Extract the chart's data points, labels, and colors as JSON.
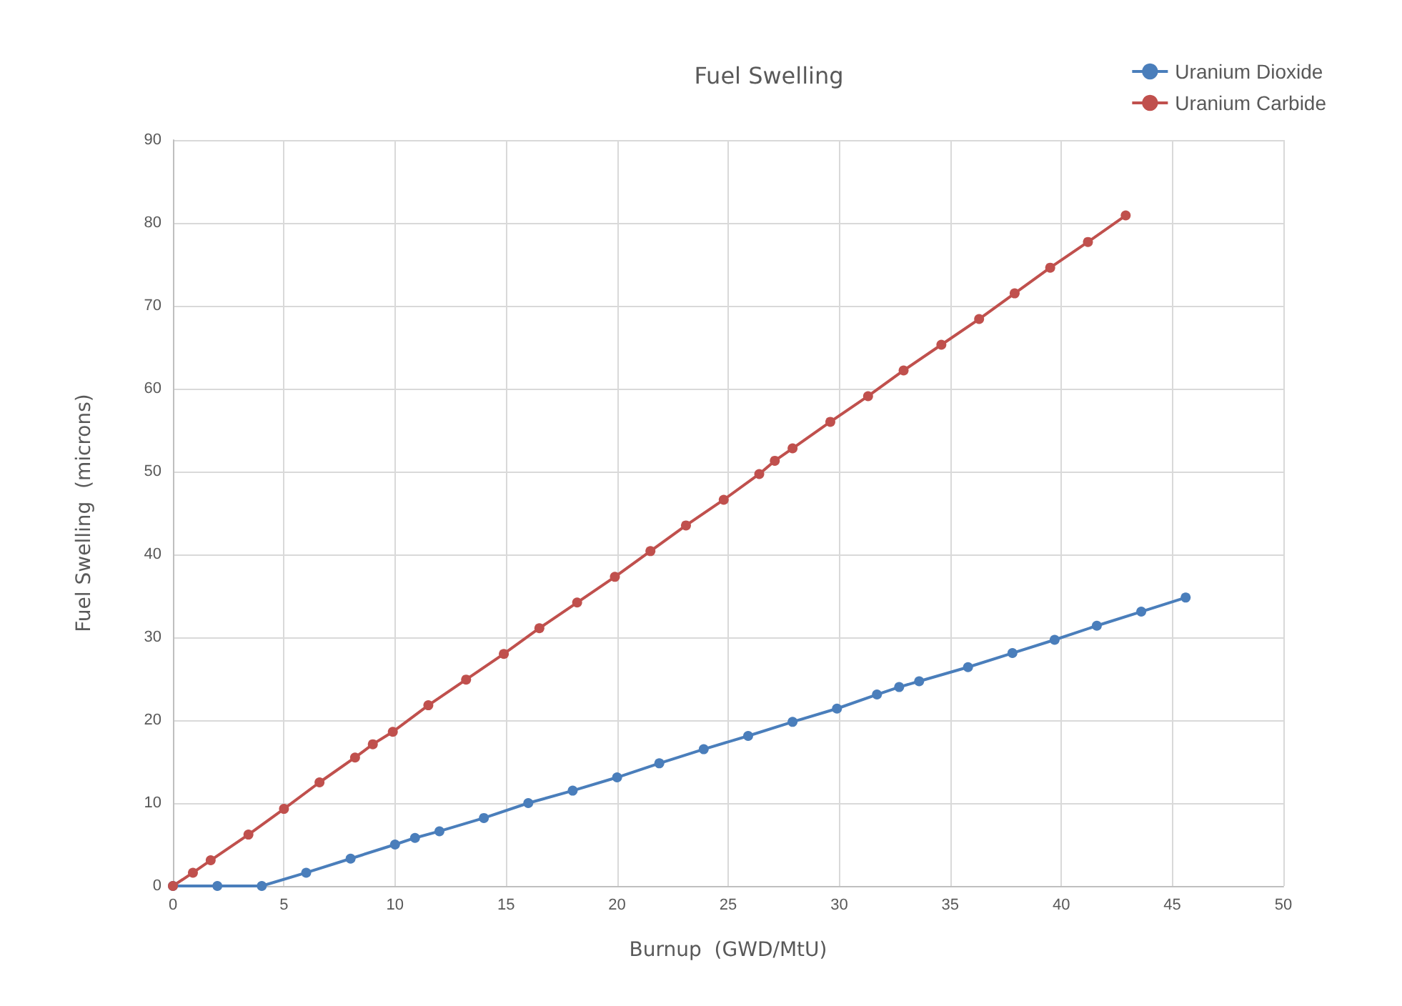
{
  "chart_data": {
    "type": "line",
    "title": "Fuel Swelling",
    "xlabel": "Burnup  (GWD/MtU)",
    "ylabel": "Fuel Swelling  (microns)",
    "xlim": [
      0,
      50
    ],
    "xticks": [
      0,
      5,
      10,
      15,
      20,
      25,
      30,
      35,
      40,
      45,
      50
    ],
    "ylim": [
      0,
      90
    ],
    "yticks": [
      0,
      10,
      20,
      30,
      40,
      50,
      60,
      70,
      80,
      90
    ],
    "grid": true,
    "legend": "top right",
    "marker": "circle",
    "line_style": "solid",
    "series": [
      {
        "name": "Uranium Dioxide",
        "color": "#4a7ebb",
        "x": [
          0,
          2,
          4,
          6,
          8,
          10,
          10.9,
          12,
          14,
          16,
          18,
          20,
          21.9,
          23.9,
          25.9,
          27.9,
          29.9,
          31.7,
          32.7,
          33.6,
          35.8,
          37.8,
          39.7,
          41.6,
          43.6,
          45.6
        ],
        "values": [
          0,
          0,
          0,
          1.6,
          3.3,
          5,
          5.8,
          6.6,
          8.2,
          10,
          11.5,
          13.1,
          14.8,
          16.5,
          18.1,
          19.8,
          21.4,
          23.1,
          24,
          24.7,
          26.4,
          28.1,
          29.7,
          31.4,
          33.1,
          34.8
        ]
      },
      {
        "name": "Uranium Carbide",
        "color": "#c0504d",
        "x": [
          0,
          0.9,
          1.7,
          3.4,
          5,
          6.6,
          8.2,
          9,
          9.9,
          11.5,
          13.2,
          14.9,
          16.5,
          18.2,
          19.9,
          21.5,
          23.1,
          24.8,
          26.4,
          27.1,
          27.9,
          29.6,
          31.3,
          32.9,
          34.6,
          36.3,
          37.9,
          39.5,
          41.2,
          42.9
        ],
        "values": [
          0,
          1.6,
          3.1,
          6.2,
          9.3,
          12.5,
          15.5,
          17.1,
          18.6,
          21.8,
          24.9,
          28,
          31.1,
          34.2,
          37.3,
          40.4,
          43.5,
          46.6,
          49.7,
          51.3,
          52.8,
          56,
          59.1,
          62.2,
          65.3,
          68.4,
          71.5,
          74.6,
          77.7,
          80.9
        ]
      }
    ]
  }
}
